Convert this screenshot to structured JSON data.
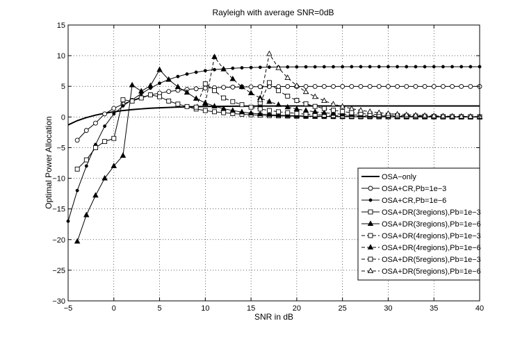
{
  "chart_data": {
    "type": "line",
    "title": "Rayleigh with average SNR=0dB",
    "xlabel": "SNR in dB",
    "ylabel": "Optimal Power Allocation",
    "xlim": [
      -5,
      40
    ],
    "ylim": [
      -30,
      15
    ],
    "xticks": [
      -5,
      0,
      5,
      10,
      15,
      20,
      25,
      30,
      35,
      40
    ],
    "yticks": [
      -30,
      -25,
      -20,
      -15,
      -10,
      -5,
      0,
      5,
      10,
      15
    ],
    "grid": true,
    "legend_position": "bottom-right",
    "series": [
      {
        "name": "OSA−only",
        "style": "solid",
        "width": 2,
        "marker": "none",
        "x": [
          -5,
          -4,
          -3,
          -2,
          -1,
          0,
          1,
          2,
          3,
          4,
          5,
          6,
          7,
          8,
          9,
          10,
          11,
          12,
          13,
          14,
          15,
          16,
          17,
          18,
          19,
          20,
          21,
          22,
          23,
          24,
          25,
          26,
          27,
          28,
          29,
          30,
          31,
          32,
          33,
          34,
          35,
          36,
          37,
          38,
          39,
          40
        ],
        "values": [
          -1.3,
          -0.6,
          -0.1,
          0.3,
          0.6,
          0.85,
          1.05,
          1.2,
          1.32,
          1.42,
          1.5,
          1.56,
          1.61,
          1.65,
          1.68,
          1.71,
          1.73,
          1.74,
          1.75,
          1.76,
          1.77,
          1.78,
          1.78,
          1.79,
          1.79,
          1.8,
          1.8,
          1.8,
          1.8,
          1.8,
          1.8,
          1.8,
          1.8,
          1.8,
          1.8,
          1.8,
          1.8,
          1.8,
          1.8,
          1.8,
          1.8,
          1.8,
          1.8,
          1.8,
          1.8,
          1.8
        ]
      },
      {
        "name": "OSA+CR,Pb=1e−3",
        "style": "solid",
        "width": 1,
        "marker": "circle",
        "hollow": true,
        "x": [
          -4,
          -3,
          -2,
          -1,
          0,
          1,
          2,
          3,
          4,
          5,
          6,
          7,
          8,
          9,
          10,
          11,
          12,
          13,
          14,
          15,
          16,
          17,
          18,
          19,
          20,
          21,
          22,
          23,
          24,
          25,
          26,
          27,
          28,
          29,
          30,
          31,
          32,
          33,
          34,
          35,
          36,
          37,
          38,
          39,
          40
        ],
        "values": [
          -3.8,
          -2.2,
          -1,
          0.5,
          1.4,
          2.1,
          2.7,
          3.2,
          3.6,
          3.9,
          4.15,
          4.35,
          4.5,
          4.6,
          4.7,
          4.78,
          4.83,
          4.87,
          4.9,
          4.92,
          4.94,
          4.95,
          4.96,
          4.97,
          4.97,
          4.98,
          4.98,
          4.98,
          4.98,
          4.98,
          4.98,
          4.98,
          4.98,
          4.98,
          4.98,
          4.98,
          4.98,
          4.98,
          4.98,
          4.98,
          4.98,
          4.98,
          4.98,
          4.98,
          4.98
        ]
      },
      {
        "name": "OSA+CR,Pb=1e−6",
        "style": "solid",
        "width": 1,
        "marker": "dot",
        "hollow": false,
        "x": [
          -5,
          -4,
          -3,
          -2,
          -1,
          0,
          1,
          2,
          3,
          4,
          5,
          6,
          7,
          8,
          9,
          10,
          11,
          12,
          13,
          14,
          15,
          16,
          17,
          18,
          19,
          20,
          21,
          22,
          23,
          24,
          25,
          26,
          27,
          28,
          29,
          30,
          31,
          32,
          33,
          34,
          35,
          36,
          37,
          38,
          39,
          40
        ],
        "values": [
          -17,
          -12,
          -8,
          -4.5,
          -1.5,
          0.5,
          1.8,
          2.8,
          3.8,
          4.7,
          5.5,
          6.1,
          6.6,
          7,
          7.3,
          7.55,
          7.72,
          7.85,
          7.95,
          8.02,
          8.07,
          8.1,
          8.13,
          8.15,
          8.16,
          8.17,
          8.18,
          8.18,
          8.19,
          8.19,
          8.19,
          8.2,
          8.2,
          8.2,
          8.2,
          8.2,
          8.2,
          8.2,
          8.2,
          8.2,
          8.2,
          8.2,
          8.2,
          8.2,
          8.2,
          8.2
        ]
      },
      {
        "name": "OSA+DR(3regions),Pb=1e−3",
        "style": "solid",
        "width": 1,
        "marker": "square",
        "hollow": true,
        "x": [
          -4,
          -3,
          -2,
          -1,
          0,
          1,
          2,
          3,
          4,
          5,
          6,
          7,
          8,
          9,
          10,
          11,
          12,
          13,
          14,
          15,
          16,
          17,
          18,
          19,
          20,
          21,
          22,
          23,
          24,
          25,
          26,
          27,
          28,
          29,
          30,
          31,
          32,
          33,
          34,
          35,
          36,
          37,
          38,
          39,
          40
        ],
        "values": [
          -8.5,
          -7,
          -5,
          -4,
          -3.5,
          2.8,
          2.6,
          3.1,
          3.6,
          3.3,
          2.6,
          2.1,
          1.7,
          1.3,
          1.05,
          0.85,
          0.7,
          0.55,
          0.45,
          0.35,
          0.28,
          0.22,
          0.18,
          0.15,
          0.12,
          0.1,
          0.08,
          0.07,
          0.06,
          0.05,
          0.04,
          0.03,
          0.03,
          0.02,
          0.02,
          0.02,
          0.01,
          0.01,
          0.01,
          0.01,
          0.01,
          0.01,
          0,
          0,
          0
        ]
      },
      {
        "name": "OSA+DR(3regions),Pb=1e−6",
        "style": "solid",
        "width": 1,
        "marker": "triangle",
        "hollow": false,
        "x": [
          -4,
          -3,
          -2,
          -1,
          0,
          1,
          2,
          3,
          4,
          5,
          6,
          7,
          8,
          9,
          10,
          11,
          12,
          13,
          14,
          15,
          16,
          17,
          18,
          19,
          20,
          21,
          22,
          23,
          24,
          25,
          26,
          27,
          28,
          29,
          30,
          31,
          32,
          33,
          34,
          35,
          36,
          37,
          38,
          39,
          40
        ],
        "values": [
          -20.3,
          -16,
          -12.8,
          -10,
          -8,
          -6.3,
          5.2,
          4.2,
          5.1,
          7.7,
          6.1,
          4.9,
          4,
          3,
          2.3,
          1.75,
          1.35,
          1.05,
          0.8,
          0.62,
          0.48,
          0.38,
          0.3,
          0.24,
          0.19,
          0.15,
          0.12,
          0.1,
          0.08,
          0.06,
          0.05,
          0.04,
          0.03,
          0.03,
          0.02,
          0.02,
          0.02,
          0.01,
          0.01,
          0.01,
          0.01,
          0.01,
          0.01,
          0,
          0
        ]
      },
      {
        "name": "OSA+DR(4regions),Pb=1e−3",
        "style": "dashed",
        "width": 1,
        "marker": "square",
        "hollow": true,
        "x": [
          9,
          10,
          11,
          12,
          13,
          14,
          15,
          16,
          17,
          18,
          19,
          20,
          21,
          22,
          23,
          24,
          25,
          26,
          27,
          28,
          29,
          30,
          31,
          32,
          33,
          34,
          35,
          36,
          37,
          38,
          39,
          40
        ],
        "values": [
          1.6,
          5.4,
          4.3,
          3.1,
          2.5,
          2,
          1.6,
          1.3,
          1.05,
          0.85,
          0.7,
          0.57,
          0.46,
          0.37,
          0.3,
          0.24,
          0.19,
          0.15,
          0.12,
          0.1,
          0.08,
          0.06,
          0.05,
          0.04,
          0.03,
          0.02,
          0.02,
          0.01,
          0.01,
          0.01,
          0,
          0
        ]
      },
      {
        "name": "OSA+DR(4regions),Pb=1e−6",
        "style": "dashed",
        "width": 1,
        "marker": "triangle",
        "hollow": false,
        "x": [
          10,
          11,
          12,
          13,
          14,
          15,
          16,
          17,
          18,
          19,
          20,
          21,
          22,
          23,
          24,
          25,
          26,
          27,
          28,
          29,
          30,
          31,
          32,
          33,
          34,
          35,
          36,
          37,
          38,
          39,
          40
        ],
        "values": [
          2.2,
          9.8,
          7.8,
          6.2,
          4.9,
          3.9,
          3.1,
          2.5,
          2,
          1.6,
          1.3,
          1.05,
          0.85,
          0.68,
          0.55,
          0.44,
          0.35,
          0.28,
          0.22,
          0.18,
          0.14,
          0.11,
          0.09,
          0.07,
          0.06,
          0.05,
          0.04,
          0.03,
          0.02,
          0.02,
          0.02
        ]
      },
      {
        "name": "OSA+DR(5regions),Pb=1e−3",
        "style": "dashed",
        "width": 1,
        "marker": "square",
        "hollow": true,
        "x": [
          16,
          17,
          18,
          19,
          20,
          21,
          22,
          23,
          24,
          25,
          26,
          27,
          28,
          29,
          30,
          31,
          32,
          33,
          34,
          35,
          36,
          37,
          38,
          39,
          40
        ],
        "values": [
          2.3,
          5.6,
          4.3,
          3.4,
          2.7,
          2.15,
          1.72,
          1.38,
          1.1,
          0.88,
          0.7,
          0.56,
          0.45,
          0.36,
          0.29,
          0.23,
          0.18,
          0.15,
          0.12,
          0.09,
          0.07,
          0.06,
          0.05,
          0.04,
          0.03
        ]
      },
      {
        "name": "OSA+DR(5regions),Pb=1e−6",
        "style": "dashed",
        "width": 1,
        "marker": "triangle",
        "hollow": true,
        "x": [
          16,
          17,
          18,
          19,
          20,
          21,
          22,
          23,
          24,
          25,
          26,
          27,
          28,
          29,
          30,
          31,
          32,
          33,
          34,
          35,
          36,
          37,
          38,
          39,
          40
        ],
        "values": [
          2.8,
          10.3,
          8,
          6.4,
          5.1,
          4.1,
          3.3,
          2.65,
          2.1,
          1.7,
          1.35,
          1.08,
          0.86,
          0.69,
          0.55,
          0.44,
          0.35,
          0.28,
          0.22,
          0.18,
          0.14,
          0.11,
          0.09,
          0.07,
          0.06
        ]
      }
    ]
  }
}
